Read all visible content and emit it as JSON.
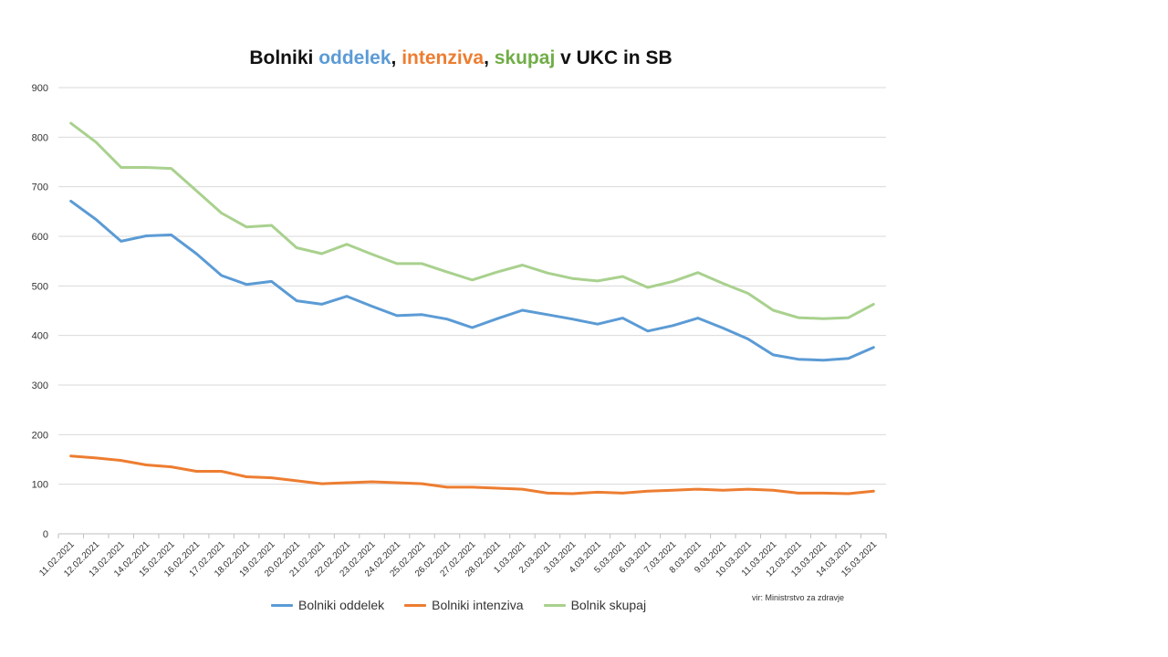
{
  "title": {
    "part1": "Bolniki ",
    "part2": "oddelek",
    "part3": ", ",
    "part4": "intenziva",
    "part5": ", ",
    "part6": "skupaj",
    "part7": " v UKC in SB"
  },
  "source": "vir: Ministrstvo za zdravje",
  "colors": {
    "blue": "#5B9BD5",
    "orange": "#ED7D31",
    "green": "#A9D18E",
    "grid": "#D9D9D9",
    "axis_text": "#333333"
  },
  "chart_data": {
    "type": "line",
    "title": "Bolniki oddelek, intenziva, skupaj v UKC in SB",
    "xlabel": "",
    "ylabel": "",
    "ylim": [
      0,
      900
    ],
    "yticks": [
      0,
      100,
      200,
      300,
      400,
      500,
      600,
      700,
      800,
      900
    ],
    "grid": true,
    "legend_position": "bottom",
    "categories": [
      "11.02.2021",
      "12.02.2021",
      "13.02.2021",
      "14.02.2021",
      "15.02.2021",
      "16.02.2021",
      "17.02.2021",
      "18.02.2021",
      "19.02.2021",
      "20.02.2021",
      "21.02.2021",
      "22.02.2021",
      "23.02.2021",
      "24.02.2021",
      "25.02.2021",
      "26.02.2021",
      "27.02.2021",
      "28.02.2021",
      "1.03.2021",
      "2.03.2021",
      "3.03.2021",
      "4.03.2021",
      "5.03.2021",
      "6.03.2021",
      "7.03.2021",
      "8.03.2021",
      "9.03.2021",
      "10.03.2021",
      "11.03.2021",
      "12.03.2021",
      "13.03.2021",
      "14.03.2021",
      "15.03.2021"
    ],
    "series": [
      {
        "name": "Bolniki oddelek",
        "color": "#5B9BD5",
        "values": [
          671,
          634,
          590,
          601,
          603,
          565,
          521,
          503,
          509,
          470,
          463,
          479,
          459,
          440,
          442,
          433,
          416,
          434,
          451,
          442,
          433,
          423,
          435,
          409,
          420,
          435,
          415,
          393,
          361,
          352,
          350,
          354,
          376
        ]
      },
      {
        "name": "Bolniki intenziva",
        "color": "#ED7D31",
        "values": [
          157,
          153,
          148,
          139,
          135,
          126,
          126,
          115,
          113,
          107,
          101,
          103,
          105,
          103,
          101,
          94,
          94,
          92,
          90,
          82,
          81,
          84,
          82,
          86,
          88,
          90,
          88,
          90,
          88,
          82,
          82,
          81,
          86
        ]
      },
      {
        "name": "Bolnik skupaj",
        "color": "#A9D18E",
        "values": [
          828,
          790,
          739,
          739,
          737,
          692,
          647,
          619,
          622,
          577,
          565,
          584,
          564,
          545,
          545,
          528,
          512,
          528,
          542,
          526,
          515,
          510,
          519,
          497,
          509,
          527,
          505,
          485,
          451,
          436,
          434,
          436,
          463
        ]
      }
    ]
  }
}
